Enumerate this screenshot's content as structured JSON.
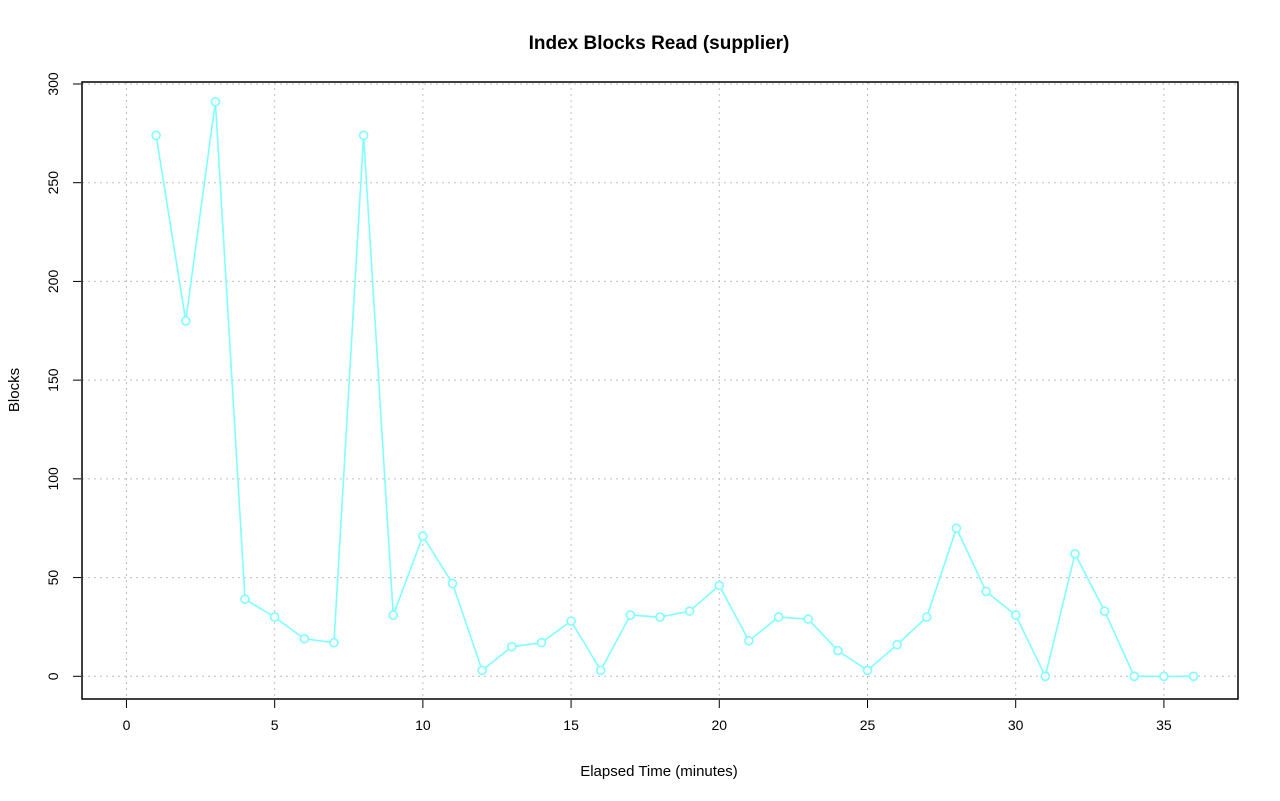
{
  "chart_data": {
    "type": "line",
    "title": "Index Blocks Read (supplier)",
    "xlabel": "Elapsed Time (minutes)",
    "ylabel": "Blocks",
    "xlim": [
      -1.5,
      37.5
    ],
    "ylim": [
      -11.5,
      301
    ],
    "xticks": [
      0,
      5,
      10,
      15,
      20,
      25,
      30,
      35
    ],
    "yticks": [
      0,
      50,
      100,
      150,
      200,
      250,
      300
    ],
    "grid": true,
    "series": [
      {
        "color": "#7fffff",
        "marker": "open-circle",
        "x": [
          1,
          2,
          3,
          4,
          5,
          6,
          7,
          8,
          9,
          10,
          11,
          12,
          13,
          14,
          15,
          16,
          17,
          18,
          19,
          20,
          21,
          22,
          23,
          24,
          25,
          26,
          27,
          28,
          29,
          30,
          31,
          32,
          33,
          34,
          35,
          36
        ],
        "y": [
          274,
          180,
          291,
          39,
          30,
          19,
          17,
          274,
          31,
          71,
          47,
          3,
          15,
          17,
          28,
          3,
          31,
          30,
          33,
          46,
          18,
          30,
          29,
          13,
          3,
          16,
          30,
          75,
          43,
          31,
          0,
          62,
          33,
          0,
          0,
          0
        ]
      }
    ]
  }
}
